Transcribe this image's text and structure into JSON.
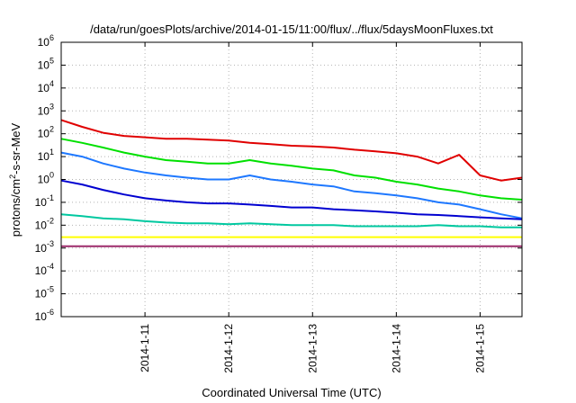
{
  "chart_data": {
    "type": "line",
    "title": "/data/run/goesPlots/archive/2014-01-15/11:00/flux/../flux/5daysMoonFluxes.txt",
    "xlabel": "Coordinated Universal Time (UTC)",
    "ylabel": {
      "pre": "protons/cm",
      "sup": "2",
      "post": "-s-sr-MeV"
    },
    "y_scale": "log",
    "ylim": [
      1e-06,
      1000000.0
    ],
    "y_ticks": [
      {
        "base": "10",
        "exp": "-6",
        "value": 1e-06
      },
      {
        "base": "10",
        "exp": "-5",
        "value": 1e-05
      },
      {
        "base": "10",
        "exp": "-4",
        "value": 0.0001
      },
      {
        "base": "10",
        "exp": "-3",
        "value": 0.001
      },
      {
        "base": "10",
        "exp": "-2",
        "value": 0.01
      },
      {
        "base": "10",
        "exp": "-1",
        "value": 0.1
      },
      {
        "base": "10",
        "exp": "0",
        "value": 1
      },
      {
        "base": "10",
        "exp": "1",
        "value": 10
      },
      {
        "base": "10",
        "exp": "2",
        "value": 100
      },
      {
        "base": "10",
        "exp": "3",
        "value": 1000
      },
      {
        "base": "10",
        "exp": "4",
        "value": 10000
      },
      {
        "base": "10",
        "exp": "5",
        "value": 100000
      },
      {
        "base": "10",
        "exp": "6",
        "value": 1000000
      }
    ],
    "xlim": [
      "2014-01-10T00:00",
      "2014-01-15T12:00"
    ],
    "x_ticks": [
      {
        "label": "2014-1-11",
        "value": "2014-01-11T00:00"
      },
      {
        "label": "2014-1-12",
        "value": "2014-01-12T00:00"
      },
      {
        "label": "2014-1-13",
        "value": "2014-01-13T00:00"
      },
      {
        "label": "2014-1-14",
        "value": "2014-01-14T00:00"
      },
      {
        "label": "2014-1-15",
        "value": "2014-01-15T00:00"
      }
    ],
    "grid": true,
    "legend": "none",
    "series": [
      {
        "color": "#e00000",
        "x": [
          "2014-01-10T00:00",
          "2014-01-10T06:00",
          "2014-01-10T12:00",
          "2014-01-10T18:00",
          "2014-01-11T00:00",
          "2014-01-11T06:00",
          "2014-01-11T12:00",
          "2014-01-11T18:00",
          "2014-01-12T00:00",
          "2014-01-12T06:00",
          "2014-01-12T12:00",
          "2014-01-12T18:00",
          "2014-01-13T00:00",
          "2014-01-13T06:00",
          "2014-01-13T12:00",
          "2014-01-13T18:00",
          "2014-01-14T00:00",
          "2014-01-14T06:00",
          "2014-01-14T12:00",
          "2014-01-14T18:00",
          "2014-01-15T00:00",
          "2014-01-15T06:00",
          "2014-01-15T12:00"
        ],
        "y": [
          400,
          200,
          110,
          80,
          70,
          60,
          60,
          55,
          50,
          40,
          35,
          30,
          28,
          25,
          20,
          17,
          14,
          10,
          5,
          12,
          1.5,
          0.9,
          1.2
        ]
      },
      {
        "color": "#00e000",
        "x": [
          "2014-01-10T00:00",
          "2014-01-10T06:00",
          "2014-01-10T12:00",
          "2014-01-10T18:00",
          "2014-01-11T00:00",
          "2014-01-11T06:00",
          "2014-01-11T12:00",
          "2014-01-11T18:00",
          "2014-01-12T00:00",
          "2014-01-12T06:00",
          "2014-01-12T12:00",
          "2014-01-12T18:00",
          "2014-01-13T00:00",
          "2014-01-13T06:00",
          "2014-01-13T12:00",
          "2014-01-13T18:00",
          "2014-01-14T00:00",
          "2014-01-14T06:00",
          "2014-01-14T12:00",
          "2014-01-14T18:00",
          "2014-01-15T00:00",
          "2014-01-15T06:00",
          "2014-01-15T12:00"
        ],
        "y": [
          60,
          40,
          25,
          15,
          10,
          7,
          6,
          5,
          5,
          7,
          5,
          4,
          3,
          2.5,
          1.5,
          1.2,
          0.8,
          0.6,
          0.4,
          0.3,
          0.2,
          0.15,
          0.13
        ]
      },
      {
        "color": "#1e78ff",
        "x": [
          "2014-01-10T00:00",
          "2014-01-10T06:00",
          "2014-01-10T12:00",
          "2014-01-10T18:00",
          "2014-01-11T00:00",
          "2014-01-11T06:00",
          "2014-01-11T12:00",
          "2014-01-11T18:00",
          "2014-01-12T00:00",
          "2014-01-12T06:00",
          "2014-01-12T12:00",
          "2014-01-12T18:00",
          "2014-01-13T00:00",
          "2014-01-13T06:00",
          "2014-01-13T12:00",
          "2014-01-13T18:00",
          "2014-01-14T00:00",
          "2014-01-14T06:00",
          "2014-01-14T12:00",
          "2014-01-14T18:00",
          "2014-01-15T00:00",
          "2014-01-15T06:00",
          "2014-01-15T12:00"
        ],
        "y": [
          15,
          10,
          5,
          3,
          2,
          1.5,
          1.2,
          1,
          1,
          1.5,
          1,
          0.8,
          0.6,
          0.5,
          0.3,
          0.25,
          0.2,
          0.15,
          0.1,
          0.08,
          0.05,
          0.03,
          0.02
        ]
      },
      {
        "color": "#0000d0",
        "x": [
          "2014-01-10T00:00",
          "2014-01-10T06:00",
          "2014-01-10T12:00",
          "2014-01-10T18:00",
          "2014-01-11T00:00",
          "2014-01-11T06:00",
          "2014-01-11T12:00",
          "2014-01-11T18:00",
          "2014-01-12T00:00",
          "2014-01-12T06:00",
          "2014-01-12T12:00",
          "2014-01-12T18:00",
          "2014-01-13T00:00",
          "2014-01-13T06:00",
          "2014-01-13T12:00",
          "2014-01-13T18:00",
          "2014-01-14T00:00",
          "2014-01-14T06:00",
          "2014-01-14T12:00",
          "2014-01-14T18:00",
          "2014-01-15T00:00",
          "2014-01-15T06:00",
          "2014-01-15T12:00"
        ],
        "y": [
          0.9,
          0.6,
          0.35,
          0.22,
          0.15,
          0.12,
          0.1,
          0.09,
          0.09,
          0.08,
          0.07,
          0.06,
          0.06,
          0.05,
          0.045,
          0.04,
          0.035,
          0.03,
          0.028,
          0.025,
          0.022,
          0.02,
          0.018
        ]
      },
      {
        "color": "#00c8a0",
        "x": [
          "2014-01-10T00:00",
          "2014-01-10T06:00",
          "2014-01-10T12:00",
          "2014-01-10T18:00",
          "2014-01-11T00:00",
          "2014-01-11T06:00",
          "2014-01-11T12:00",
          "2014-01-11T18:00",
          "2014-01-12T00:00",
          "2014-01-12T06:00",
          "2014-01-12T12:00",
          "2014-01-12T18:00",
          "2014-01-13T00:00",
          "2014-01-13T06:00",
          "2014-01-13T12:00",
          "2014-01-13T18:00",
          "2014-01-14T00:00",
          "2014-01-14T06:00",
          "2014-01-14T12:00",
          "2014-01-14T18:00",
          "2014-01-15T00:00",
          "2014-01-15T06:00",
          "2014-01-15T12:00"
        ],
        "y": [
          0.03,
          0.025,
          0.02,
          0.018,
          0.015,
          0.013,
          0.012,
          0.012,
          0.011,
          0.012,
          0.011,
          0.01,
          0.01,
          0.01,
          0.009,
          0.009,
          0.009,
          0.009,
          0.01,
          0.009,
          0.009,
          0.008,
          0.008
        ]
      },
      {
        "color": "#ffff00",
        "x": [
          "2014-01-10T00:00",
          "2014-01-10T12:00",
          "2014-01-11T00:00",
          "2014-01-11T12:00",
          "2014-01-12T00:00",
          "2014-01-12T12:00",
          "2014-01-13T00:00",
          "2014-01-13T12:00",
          "2014-01-14T00:00",
          "2014-01-14T12:00",
          "2014-01-15T00:00",
          "2014-01-15T12:00"
        ],
        "y": [
          0.003,
          0.003,
          0.003,
          0.003,
          0.003,
          0.003,
          0.003,
          0.003,
          0.003,
          0.003,
          0.003,
          0.003
        ]
      },
      {
        "color": "#9c2a6a",
        "x": [
          "2014-01-10T00:00",
          "2014-01-10T12:00",
          "2014-01-11T00:00",
          "2014-01-11T12:00",
          "2014-01-12T00:00",
          "2014-01-12T12:00",
          "2014-01-13T00:00",
          "2014-01-13T12:00",
          "2014-01-14T00:00",
          "2014-01-14T12:00",
          "2014-01-15T00:00",
          "2014-01-15T12:00"
        ],
        "y": [
          0.0012,
          0.0012,
          0.0012,
          0.0012,
          0.0012,
          0.0012,
          0.0012,
          0.0012,
          0.0012,
          0.0012,
          0.0012,
          0.0012
        ]
      }
    ]
  }
}
